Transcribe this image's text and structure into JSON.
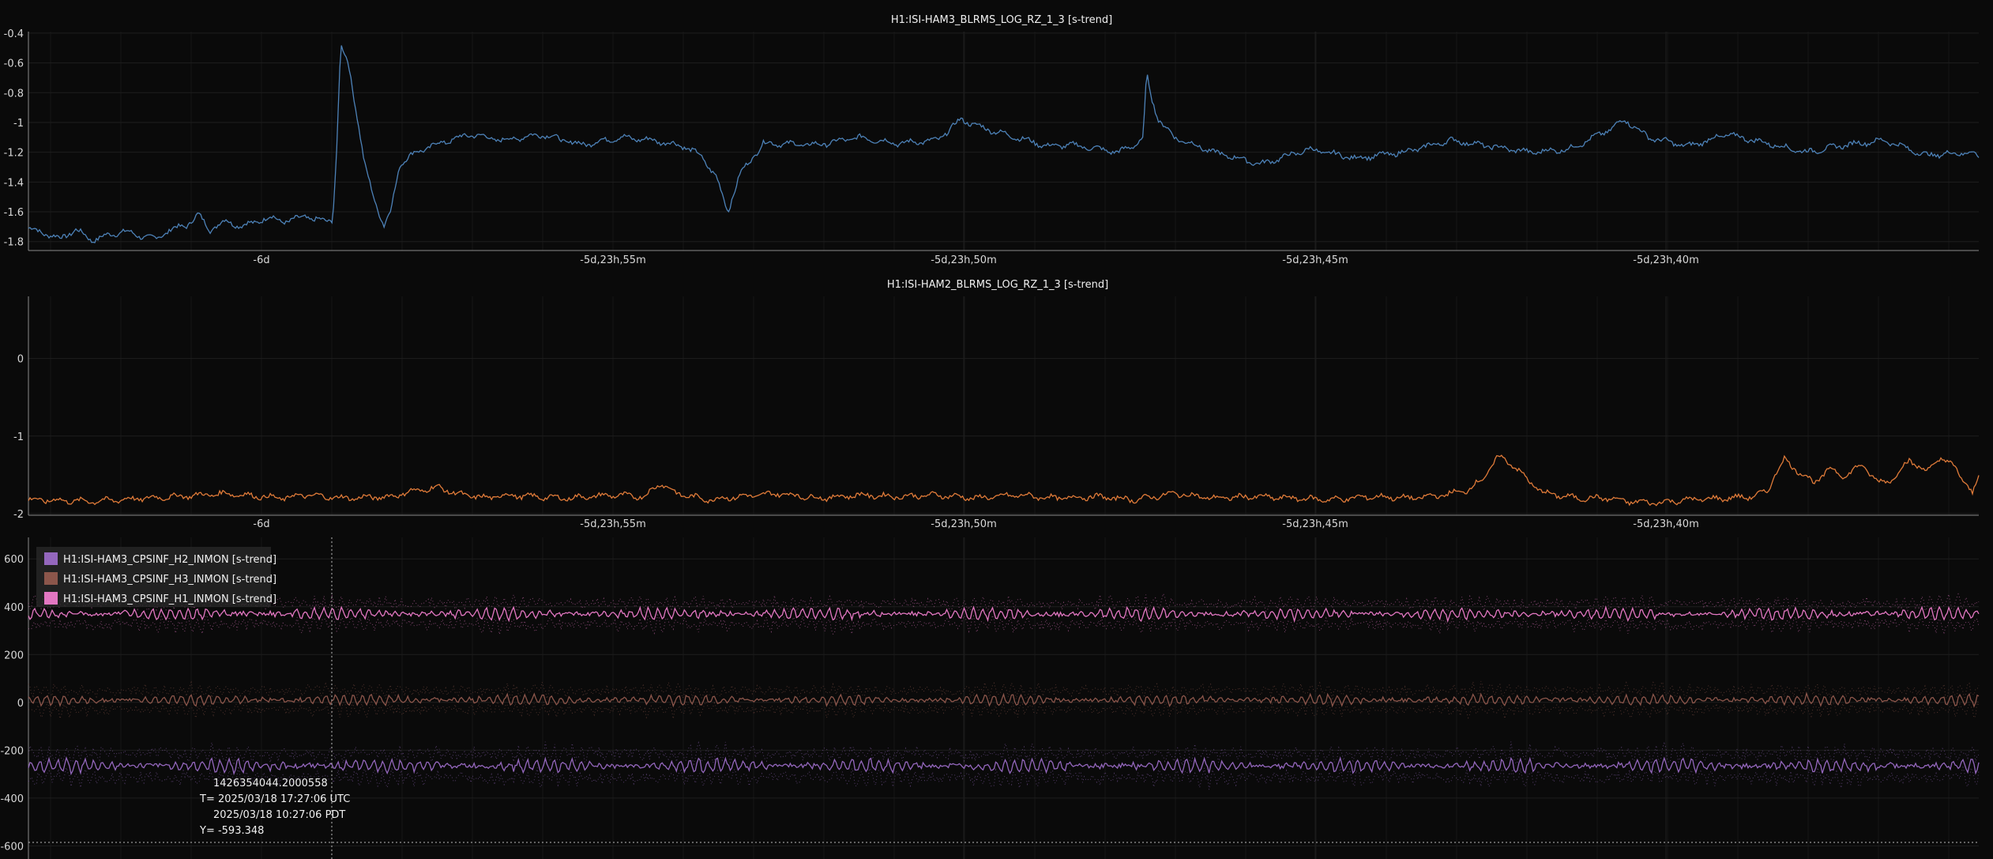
{
  "chart_data": [
    {
      "type": "line",
      "title": "H1:ISI-HAM3_BLRMS_LOG_RZ_1_3 [s-trend]",
      "xticks": [
        "-6d",
        "-5d,23h,55m",
        "-5d,23h,50m",
        "-5d,23h,45m",
        "-5d,23h,40m"
      ],
      "yticks": [
        "-0.4",
        "-0.6",
        "-0.8",
        "-1",
        "-1.2",
        "-1.4",
        "-1.6",
        "-1.8"
      ],
      "ylim": [
        -1.86,
        -0.39
      ],
      "grid": true,
      "series": [
        {
          "color": "#4d82b8",
          "keypoints": [
            [
              0,
              -1.71
            ],
            [
              18,
              -1.74
            ],
            [
              40,
              -1.78
            ],
            [
              60,
              -1.72
            ],
            [
              80,
              -1.79
            ],
            [
              100,
              -1.76
            ],
            [
              120,
              -1.73
            ],
            [
              140,
              -1.76
            ],
            [
              160,
              -1.78
            ],
            [
              180,
              -1.72
            ],
            [
              200,
              -1.69
            ],
            [
              215,
              -1.62
            ],
            [
              230,
              -1.72
            ],
            [
              250,
              -1.66
            ],
            [
              270,
              -1.7
            ],
            [
              290,
              -1.66
            ],
            [
              310,
              -1.64
            ],
            [
              330,
              -1.67
            ],
            [
              350,
              -1.62
            ],
            [
              360,
              -1.66
            ],
            [
              385,
              -1.65
            ],
            [
              390,
              -1.2
            ],
            [
              395,
              -0.49
            ],
            [
              405,
              -0.6
            ],
            [
              415,
              -0.93
            ],
            [
              425,
              -1.28
            ],
            [
              440,
              -1.55
            ],
            [
              450,
              -1.7
            ],
            [
              458,
              -1.6
            ],
            [
              470,
              -1.28
            ],
            [
              490,
              -1.2
            ],
            [
              520,
              -1.14
            ],
            [
              560,
              -1.08
            ],
            [
              600,
              -1.12
            ],
            [
              650,
              -1.08
            ],
            [
              700,
              -1.15
            ],
            [
              750,
              -1.1
            ],
            [
              790,
              -1.12
            ],
            [
              830,
              -1.16
            ],
            [
              850,
              -1.22
            ],
            [
              870,
              -1.36
            ],
            [
              885,
              -1.6
            ],
            [
              900,
              -1.35
            ],
            [
              930,
              -1.14
            ],
            [
              1000,
              -1.15
            ],
            [
              1050,
              -1.1
            ],
            [
              1100,
              -1.14
            ],
            [
              1150,
              -1.12
            ],
            [
              1180,
              -0.98
            ],
            [
              1210,
              -1.04
            ],
            [
              1250,
              -1.1
            ],
            [
              1290,
              -1.16
            ],
            [
              1320,
              -1.15
            ],
            [
              1380,
              -1.2
            ],
            [
              1410,
              -1.12
            ],
            [
              1415,
              -0.68
            ],
            [
              1422,
              -0.85
            ],
            [
              1430,
              -0.98
            ],
            [
              1450,
              -1.1
            ],
            [
              1500,
              -1.2
            ],
            [
              1560,
              -1.28
            ],
            [
              1620,
              -1.18
            ],
            [
              1680,
              -1.24
            ],
            [
              1740,
              -1.2
            ],
            [
              1800,
              -1.12
            ],
            [
              1900,
              -1.2
            ],
            [
              1950,
              -1.18
            ],
            [
              2000,
              -1.05
            ],
            [
              2020,
              -0.98
            ],
            [
              2050,
              -1.1
            ],
            [
              2100,
              -1.16
            ],
            [
              2150,
              -1.08
            ],
            [
              2200,
              -1.14
            ],
            [
              2250,
              -1.2
            ],
            [
              2300,
              -1.15
            ],
            [
              2350,
              -1.12
            ],
            [
              2400,
              -1.22
            ],
            [
              2460,
              -1.2
            ],
            [
              2468,
              -1.24
            ]
          ]
        }
      ]
    },
    {
      "type": "line",
      "title": "H1:ISI-HAM2_BLRMS_LOG_RZ_1_3 [s-trend]",
      "xticks": [
        "-6d",
        "-5d,23h,55m",
        "-5d,23h,50m",
        "-5d,23h,45m",
        "-5d,23h,40m"
      ],
      "yticks": [
        "0",
        "-1",
        "-2"
      ],
      "ylim": [
        -2.02,
        0.8
      ],
      "grid": true,
      "series": [
        {
          "color": "#e07b39",
          "keypoints": [
            [
              0,
              -1.82
            ],
            [
              80,
              -1.84
            ],
            [
              150,
              -1.8
            ],
            [
              250,
              -1.74
            ],
            [
              320,
              -1.8
            ],
            [
              350,
              -1.76
            ],
            [
              400,
              -1.8
            ],
            [
              460,
              -1.78
            ],
            [
              480,
              -1.72
            ],
            [
              520,
              -1.66
            ],
            [
              540,
              -1.74
            ],
            [
              580,
              -1.8
            ],
            [
              600,
              -1.76
            ],
            [
              680,
              -1.8
            ],
            [
              740,
              -1.76
            ],
            [
              780,
              -1.78
            ],
            [
              800,
              -1.6
            ],
            [
              820,
              -1.74
            ],
            [
              860,
              -1.82
            ],
            [
              900,
              -1.78
            ],
            [
              950,
              -1.74
            ],
            [
              1000,
              -1.8
            ],
            [
              1050,
              -1.76
            ],
            [
              1100,
              -1.78
            ],
            [
              1150,
              -1.76
            ],
            [
              1200,
              -1.8
            ],
            [
              1250,
              -1.76
            ],
            [
              1300,
              -1.8
            ],
            [
              1350,
              -1.78
            ],
            [
              1400,
              -1.82
            ],
            [
              1450,
              -1.74
            ],
            [
              1500,
              -1.8
            ],
            [
              1550,
              -1.78
            ],
            [
              1600,
              -1.8
            ],
            [
              1650,
              -1.82
            ],
            [
              1700,
              -1.78
            ],
            [
              1750,
              -1.8
            ],
            [
              1790,
              -1.76
            ],
            [
              1820,
              -1.7
            ],
            [
              1840,
              -1.56
            ],
            [
              1860,
              -1.26
            ],
            [
              1880,
              -1.38
            ],
            [
              1900,
              -1.6
            ],
            [
              1920,
              -1.74
            ],
            [
              1960,
              -1.8
            ],
            [
              2000,
              -1.8
            ],
            [
              2020,
              -1.84
            ],
            [
              2060,
              -1.86
            ],
            [
              2100,
              -1.82
            ],
            [
              2150,
              -1.8
            ],
            [
              2180,
              -1.78
            ],
            [
              2200,
              -1.72
            ],
            [
              2210,
              -1.5
            ],
            [
              2222,
              -1.3
            ],
            [
              2240,
              -1.46
            ],
            [
              2260,
              -1.6
            ],
            [
              2280,
              -1.42
            ],
            [
              2300,
              -1.52
            ],
            [
              2320,
              -1.36
            ],
            [
              2340,
              -1.6
            ],
            [
              2360,
              -1.55
            ],
            [
              2380,
              -1.3
            ],
            [
              2400,
              -1.46
            ],
            [
              2420,
              -1.28
            ],
            [
              2440,
              -1.42
            ],
            [
              2460,
              -1.76
            ],
            [
              2468,
              -1.5
            ]
          ]
        }
      ]
    },
    {
      "type": "line",
      "yticks": [
        "600",
        "400",
        "200",
        "0",
        "-200",
        "-400",
        "-600"
      ],
      "ylim": [
        -655,
        690
      ],
      "grid": true,
      "legend_position": "top-left",
      "series": [
        {
          "name": "H1:ISI-HAM3_CPSINF_H2_INMON [s-trend]",
          "color": "#9467bd",
          "mean": -265,
          "amplitude": 25
        },
        {
          "name": "H1:ISI-HAM3_CPSINF_H3_INMON [s-trend]",
          "color": "#8c564b",
          "mean": 10,
          "amplitude": 20
        },
        {
          "name": "H1:ISI-HAM3_CPSINF_H1_INMON [s-trend]",
          "color": "#e377c2",
          "mean": 370,
          "amplitude": 22
        }
      ],
      "cursor_readout": {
        "gps": "1426354044.2000558",
        "utc": "T= 2025/03/18 17:27:06 UTC",
        "local": "2025/03/18 10:27:06 PDT",
        "y": "Y= -593.348"
      }
    }
  ]
}
